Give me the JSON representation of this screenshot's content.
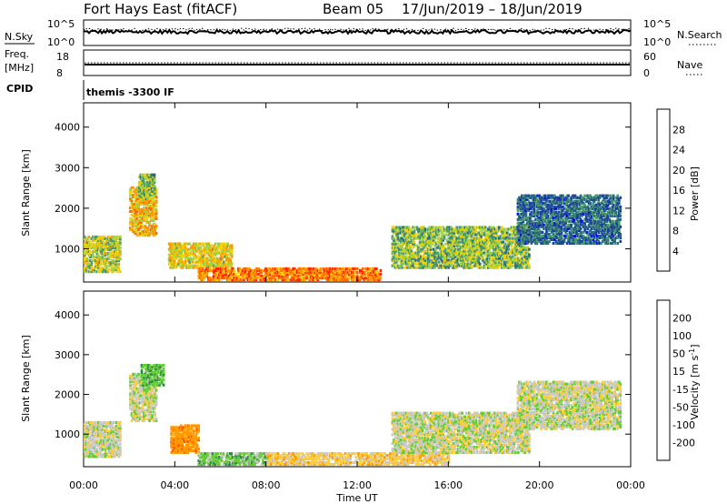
{
  "header": {
    "station": "Fort Hays East (fitACF)",
    "beam": "Beam 05",
    "date_range": "17/Jun/2019 – 18/Jun/2019"
  },
  "strips": {
    "nsky_label": "N.Sky",
    "nsearch_label": "N.Search",
    "nsky_ticks": [
      "10^5",
      "10^0"
    ],
    "nsearch_ticks": [
      "10^5",
      "10^0"
    ],
    "freq_label_1": "Freq.",
    "freq_label_2": "[MHz]",
    "freq_ticks": [
      "18",
      "8"
    ],
    "nave_label": "Nave",
    "nave_ticks": [
      "60",
      "0"
    ],
    "cpid_label": "CPID",
    "cpid_text": "themis -3300 IF"
  },
  "panels": {
    "ylabel": "Slant Range [km]",
    "xlabel": "Time UT",
    "power_colorbar_label": "Power [dB]",
    "velocity_colorbar_label": "Velocity [m s",
    "velocity_colorbar_sup": "-1",
    "velocity_colorbar_close": "]"
  },
  "colors": {
    "power_scale": [
      "#0000ff",
      "#1f3f9f",
      "#2a6a7a",
      "#4a9a6a",
      "#9fd040",
      "#f5d000",
      "#ff9900",
      "#ff6600",
      "#ff2200"
    ],
    "velocity_scale": [
      "#ee0000",
      "#ff5500",
      "#ff9900",
      "#ffcc33",
      "#c8c8c8",
      "#66cc33",
      "#2a8a4a",
      "#2040a0",
      "#0000cc"
    ]
  },
  "chart_data": [
    {
      "type": "heatmap",
      "name": "power",
      "x": {
        "label": "Time UT",
        "range": [
          "00:00",
          "00:00"
        ],
        "ticks": [
          "00:00",
          "04:00",
          "08:00",
          "12:00",
          "16:00",
          "20:00",
          "00:00"
        ]
      },
      "y": {
        "label": "Slant Range [km]",
        "range_km": [
          180,
          4600
        ],
        "ticks": [
          1000,
          2000,
          3000,
          4000
        ]
      },
      "colorbar": {
        "label": "Power [dB]",
        "ticks": [
          4,
          8,
          12,
          16,
          20,
          24,
          28
        ],
        "range": [
          0,
          30
        ]
      },
      "regions": [
        {
          "t_start_h": 0.0,
          "t_end_h": 1.6,
          "km_low": 400,
          "km_high": 1300,
          "power_db": 16
        },
        {
          "t_start_h": 2.0,
          "t_end_h": 3.2,
          "km_low": 1300,
          "km_high": 2500,
          "power_db": 20
        },
        {
          "t_start_h": 2.4,
          "t_end_h": 3.1,
          "km_low": 2200,
          "km_high": 2800,
          "power_db": 14
        },
        {
          "t_start_h": 3.7,
          "t_end_h": 6.5,
          "km_low": 500,
          "km_high": 1100,
          "power_db": 18
        },
        {
          "t_start_h": 5.0,
          "t_end_h": 13.0,
          "km_low": 200,
          "km_high": 500,
          "power_db": 24
        },
        {
          "t_start_h": 13.5,
          "t_end_h": 19.5,
          "km_low": 500,
          "km_high": 1500,
          "power_db": 14
        },
        {
          "t_start_h": 19.0,
          "t_end_h": 23.5,
          "km_low": 1100,
          "km_high": 2300,
          "power_db": 8
        }
      ]
    },
    {
      "type": "heatmap",
      "name": "velocity",
      "x": {
        "label": "Time UT",
        "range": [
          "00:00",
          "00:00"
        ],
        "ticks": [
          "00:00",
          "04:00",
          "08:00",
          "12:00",
          "16:00",
          "20:00",
          "00:00"
        ]
      },
      "y": {
        "label": "Slant Range [km]",
        "range_km": [
          180,
          4600
        ],
        "ticks": [
          1000,
          2000,
          3000,
          4000
        ]
      },
      "colorbar": {
        "label": "Velocity [m s-1]",
        "ticks": [
          200,
          100,
          50,
          15,
          -15,
          -50,
          -100,
          -200
        ]
      },
      "regions": [
        {
          "t_start_h": 0.0,
          "t_end_h": 1.6,
          "km_low": 400,
          "km_high": 1300,
          "velocity": 0
        },
        {
          "t_start_h": 2.0,
          "t_end_h": 3.2,
          "km_low": 1300,
          "km_high": 2500,
          "velocity": 0
        },
        {
          "t_start_h": 2.5,
          "t_end_h": 3.5,
          "km_low": 2200,
          "km_high": 2700,
          "velocity": 40
        },
        {
          "t_start_h": 3.8,
          "t_end_h": 5.0,
          "km_low": 500,
          "km_high": 1200,
          "velocity": -80
        },
        {
          "t_start_h": 5.0,
          "t_end_h": 8.0,
          "km_low": 200,
          "km_high": 500,
          "velocity": 30
        },
        {
          "t_start_h": 8.0,
          "t_end_h": 16.0,
          "km_low": 200,
          "km_high": 500,
          "velocity": -30
        },
        {
          "t_start_h": 13.5,
          "t_end_h": 19.5,
          "km_low": 500,
          "km_high": 1500,
          "velocity": 0
        },
        {
          "t_start_h": 19.0,
          "t_end_h": 23.5,
          "km_low": 1100,
          "km_high": 2300,
          "velocity": 0
        }
      ]
    }
  ]
}
